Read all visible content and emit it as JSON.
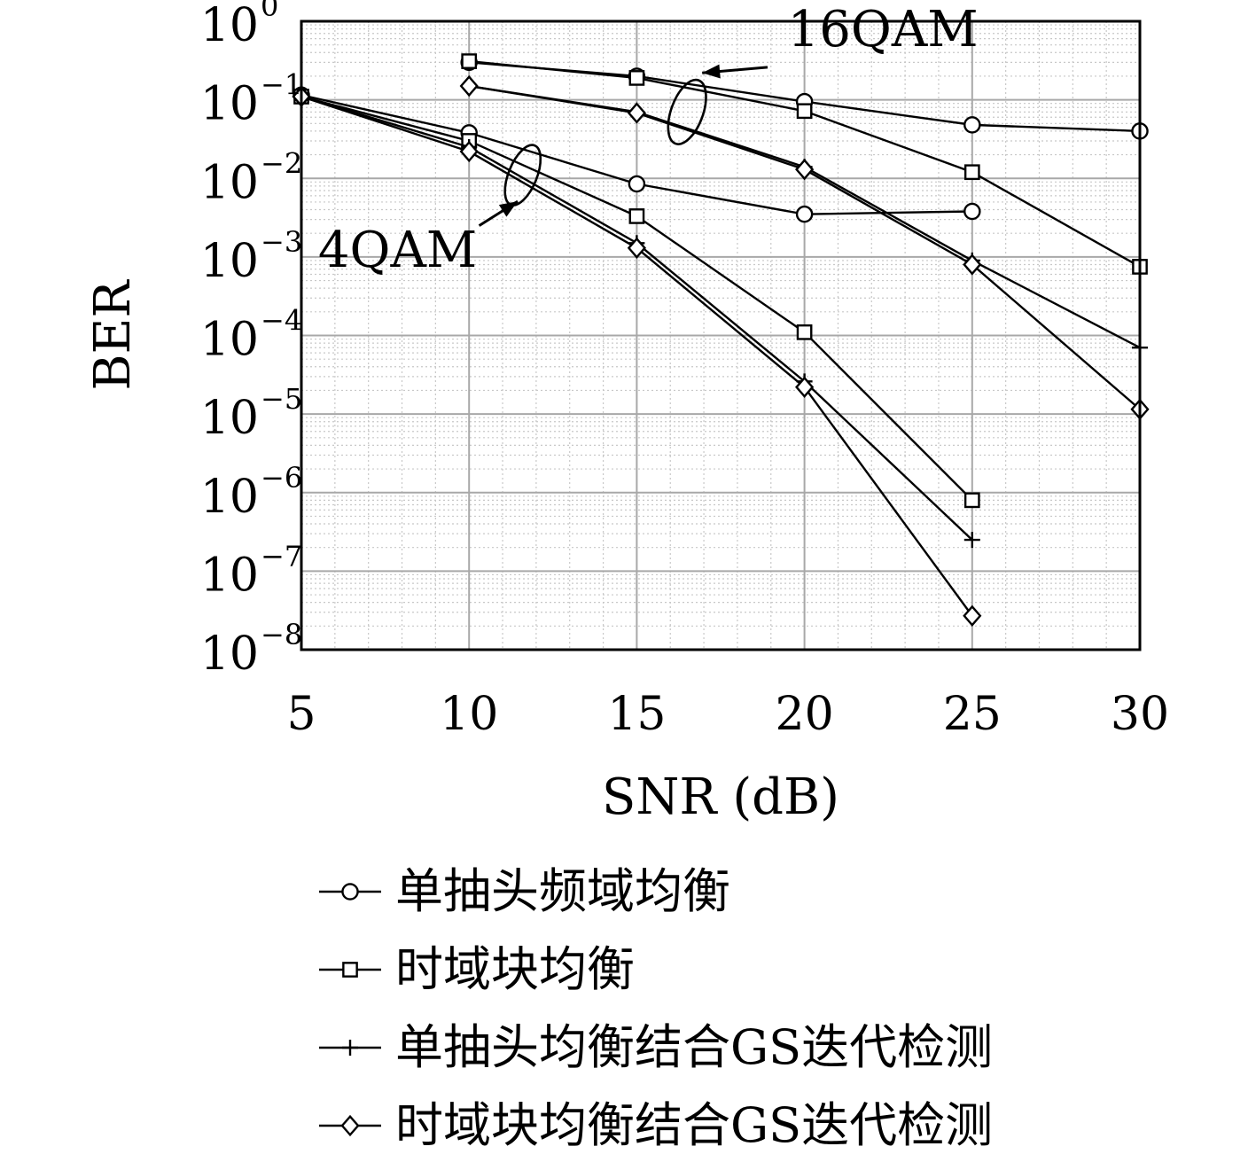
{
  "chart_data": {
    "type": "line",
    "xlabel": "SNR (dB)",
    "ylabel": "BER",
    "xlim": [
      5,
      30
    ],
    "ylim": [
      1e-08,
      1
    ],
    "yscale": "log",
    "grid": true,
    "x_ticks": [
      "5",
      "10",
      "15",
      "20",
      "25",
      "30"
    ],
    "y_ticks": [
      {
        "base": "10",
        "exp": "0"
      },
      {
        "base": "10",
        "exp": "−1"
      },
      {
        "base": "10",
        "exp": "−2"
      },
      {
        "base": "10",
        "exp": "−3"
      },
      {
        "base": "10",
        "exp": "−4"
      },
      {
        "base": "10",
        "exp": "−5"
      },
      {
        "base": "10",
        "exp": "−6"
      },
      {
        "base": "10",
        "exp": "−7"
      },
      {
        "base": "10",
        "exp": "−8"
      }
    ],
    "annotations": [
      {
        "text": "16QAM",
        "data_x": 19.5,
        "data_y": 0.48
      },
      {
        "text": "4QAM",
        "data_x": 5.5,
        "data_y": 0.00075
      }
    ],
    "legend": {
      "position": "bottom",
      "entries": [
        {
          "label": "单抽头频域均衡",
          "marker": "circle"
        },
        {
          "label": "时域块均衡",
          "marker": "square"
        },
        {
          "label": "单抽头均衡结合GS迭代检测",
          "marker": "plus"
        },
        {
          "label": "时域块均衡结合GS迭代检测",
          "marker": "diamond"
        }
      ]
    },
    "series": [
      {
        "group": "4QAM",
        "marker": "circle",
        "x": [
          5,
          10,
          15,
          20,
          25
        ],
        "values": [
          0.115,
          0.038,
          0.0085,
          0.0035,
          0.0038
        ]
      },
      {
        "group": "4QAM",
        "marker": "square",
        "x": [
          5,
          10,
          15,
          20,
          25
        ],
        "values": [
          0.11,
          0.03,
          0.0033,
          0.00011,
          8e-07
        ]
      },
      {
        "group": "4QAM",
        "marker": "plus",
        "x": [
          5,
          10,
          15,
          20,
          25
        ],
        "values": [
          0.11,
          0.025,
          0.0015,
          2.6e-05,
          2.5e-07
        ]
      },
      {
        "group": "4QAM",
        "marker": "diamond",
        "x": [
          5,
          10,
          15,
          20,
          25
        ],
        "values": [
          0.11,
          0.022,
          0.0013,
          2.2e-05,
          2.7e-08
        ]
      },
      {
        "group": "16QAM",
        "marker": "circle",
        "x": [
          10,
          15,
          20,
          25,
          30
        ],
        "values": [
          0.3,
          0.2,
          0.095,
          0.048,
          0.04
        ]
      },
      {
        "group": "16QAM",
        "marker": "square",
        "x": [
          10,
          15,
          20,
          25,
          30
        ],
        "values": [
          0.31,
          0.19,
          0.072,
          0.012,
          0.00075
        ]
      },
      {
        "group": "16QAM",
        "marker": "plus",
        "x": [
          10,
          15,
          20,
          25,
          30
        ],
        "values": [
          0.15,
          0.07,
          0.014,
          0.0009,
          7e-05
        ]
      },
      {
        "group": "16QAM",
        "marker": "diamond",
        "x": [
          10,
          15,
          20,
          25,
          30
        ],
        "values": [
          0.15,
          0.068,
          0.013,
          0.0008,
          1.15e-05
        ]
      }
    ]
  }
}
